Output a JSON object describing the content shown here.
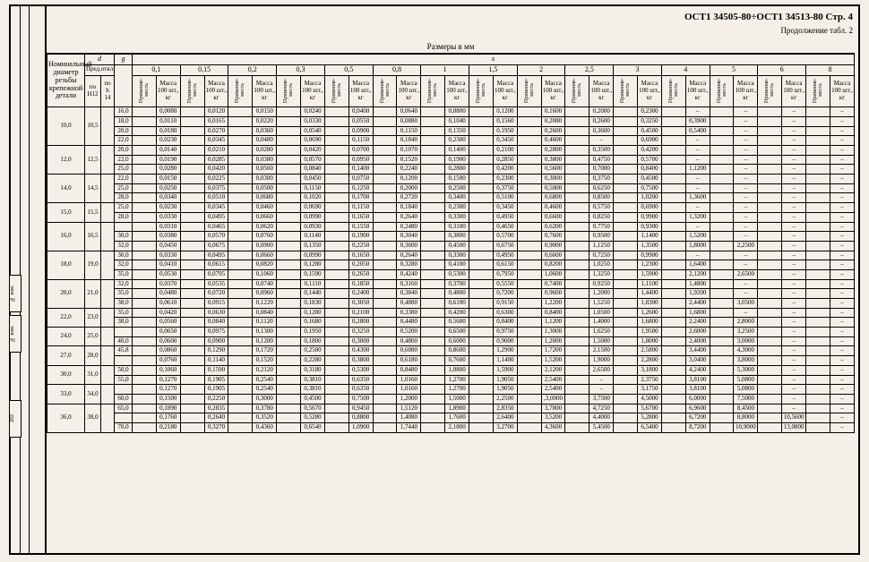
{
  "header": {
    "page_mark": "- 5 -",
    "doc_code": "ОСТ1 34505-80÷ОСТ1 34513-80 Стр. 4",
    "continuation": "Продолжение табл. 2",
    "caption": "Размеры в мм"
  },
  "corner": {
    "nom": "Номинальный диаметр резьбы крепежной детали",
    "d_sym": "d",
    "g_sym": "g",
    "pred": "Пред.откл.",
    "h12": "по Н12",
    "h14": "по h 14",
    "s_label": "s"
  },
  "s_cols": [
    "0,1",
    "0,15",
    "0,2",
    "0,3",
    "0,5",
    "0,8",
    "1",
    "1,5",
    "2",
    "2,5",
    "3",
    "4",
    "5",
    "6",
    "8"
  ],
  "sub": {
    "prim": "Применяе-мость",
    "mass": "Масса 100 шт., кг"
  },
  "rows": [
    {
      "d": "10,0",
      "h": "10,5",
      "g": "16,0",
      "m": [
        "0,0080",
        "0,0120",
        "0,0150",
        "0,0240",
        "0,0400",
        "0,0640",
        "0,0800",
        "0,1200",
        "0,1600",
        "0,2000",
        "0,2300",
        "",
        "",
        "",
        ""
      ]
    },
    {
      "d": "",
      "h": "",
      "g": "18,0",
      "m": [
        "0,0110",
        "0,0165",
        "0,0220",
        "0,0330",
        "0,0550",
        "0,0880",
        "0,1040",
        "0,1560",
        "0,2080",
        "0,2600",
        "0,3250",
        "0,3900",
        "",
        "",
        ""
      ]
    },
    {
      "d": "",
      "h": "",
      "g": "20,0",
      "m": [
        "0,0180",
        "0,0270",
        "0,0360",
        "0,0540",
        "0,0900",
        "0,1150",
        "0,1350",
        "0,1950",
        "0,2600",
        "0,3600",
        "0,4500",
        "0,5400",
        "",
        "",
        ""
      ]
    },
    {
      "d": "",
      "h": "",
      "g": "22,0",
      "m": [
        "0,0230",
        "0,0345",
        "0,0480",
        "0,0690",
        "0,1150",
        "0,1840",
        "0,2300",
        "0,3450",
        "0,4600",
        "",
        "0,6900",
        "",
        "",
        "",
        ""
      ]
    },
    {
      "d": "12,0",
      "h": "12,5",
      "g": "20,0",
      "m": [
        "0,0140",
        "0,0210",
        "0,0280",
        "0,0420",
        "0,0700",
        "0,1070",
        "0,1400",
        "0,2100",
        "0,2800",
        "0,3500",
        "0,4200",
        "",
        "",
        "",
        ""
      ]
    },
    {
      "d": "",
      "h": "",
      "g": "22,0",
      "m": [
        "0,0190",
        "0,0285",
        "0,0380",
        "0,0570",
        "0,0950",
        "0,1520",
        "0,1900",
        "0,2850",
        "0,3800",
        "0,4750",
        "0,5700",
        "",
        "",
        "",
        ""
      ]
    },
    {
      "d": "",
      "h": "",
      "g": "25,0",
      "m": [
        "0,0280",
        "0,0420",
        "0,0560",
        "0,0840",
        "0,1400",
        "0,2240",
        "0,2800",
        "0,4200",
        "0,5600",
        "0,7000",
        "0,8400",
        "1,1200",
        "",
        "",
        ""
      ]
    },
    {
      "d": "14,0",
      "h": "14,5",
      "g": "22,0",
      "m": [
        "0,0150",
        "0,0225",
        "0,0300",
        "0,0450",
        "0,0750",
        "0,1200",
        "0,1500",
        "0,2300",
        "0,3000",
        "0,3750",
        "0,4500",
        "",
        "",
        "",
        ""
      ]
    },
    {
      "d": "",
      "h": "",
      "g": "25,0",
      "m": [
        "0,0250",
        "0,0375",
        "0,0500",
        "0,1150",
        "0,1250",
        "0,2000",
        "0,2500",
        "0,3750",
        "0,5000",
        "0,6250",
        "0,7500",
        "",
        "",
        "",
        ""
      ]
    },
    {
      "d": "",
      "h": "",
      "g": "28,0",
      "m": [
        "0,0340",
        "0,0510",
        "0,0680",
        "0,1020",
        "0,1700",
        "0,2720",
        "0,3400",
        "0,5100",
        "0,6800",
        "0,8500",
        "1,0200",
        "1,3600",
        "",
        "",
        ""
      ]
    },
    {
      "d": "15,0",
      "h": "15,5",
      "g": "25,0",
      "m": [
        "0,0230",
        "0,0345",
        "0,0460",
        "0,0690",
        "0,1150",
        "0,1840",
        "0,2300",
        "0,3450",
        "0,4600",
        "0,5750",
        "0,6900",
        "",
        "",
        "",
        ""
      ]
    },
    {
      "d": "",
      "h": "",
      "g": "28,0",
      "m": [
        "0,0330",
        "0,0495",
        "0,0660",
        "0,0990",
        "0,1650",
        "0,2640",
        "0,3300",
        "0,4950",
        "0,6600",
        "0,8250",
        "0,9900",
        "1,3200",
        "",
        "",
        ""
      ]
    },
    {
      "d": "16,0",
      "h": "16,5",
      "g": "",
      "m": [
        "0,0310",
        "0,0465",
        "0,0620",
        "0,0930",
        "0,1550",
        "0,2480",
        "0,3100",
        "0,4650",
        "0,6200",
        "0,7750",
        "0,9300",
        "",
        "",
        "",
        ""
      ]
    },
    {
      "d": "",
      "h": "",
      "g": "30,0",
      "m": [
        "0,0380",
        "0,0570",
        "0,0760",
        "0,1140",
        "0,1900",
        "0,3040",
        "0,3800",
        "0,5700",
        "0,7600",
        "0,9500",
        "1,1400",
        "1,5200",
        "",
        "",
        ""
      ]
    },
    {
      "d": "",
      "h": "",
      "g": "32,0",
      "m": [
        "0,0450",
        "0,0675",
        "0,0900",
        "0,1350",
        "0,2250",
        "0,3600",
        "0,4500",
        "0,6750",
        "0,9000",
        "1,1250",
        "1,3500",
        "1,8000",
        "2,2500",
        "",
        ""
      ]
    },
    {
      "d": "18,0",
      "h": "19,0",
      "g": "30,0",
      "m": [
        "0,0330",
        "0,0495",
        "0,0660",
        "0,0990",
        "0,1650",
        "0,2640",
        "0,3300",
        "0,4950",
        "0,6600",
        "0,7250",
        "0,9900",
        "",
        "",
        "",
        ""
      ]
    },
    {
      "d": "",
      "h": "",
      "g": "32,0",
      "m": [
        "0,0410",
        "0,0615",
        "0,0820",
        "0,1280",
        "0,2050",
        "0,3280",
        "0,4100",
        "0,6150",
        "0,8200",
        "1,0250",
        "1,2300",
        "1,6400",
        "",
        "",
        ""
      ]
    },
    {
      "d": "",
      "h": "",
      "g": "35,0",
      "m": [
        "0,0530",
        "0,0795",
        "0,1060",
        "0,1590",
        "0,2650",
        "0,4240",
        "0,5300",
        "0,7950",
        "1,0600",
        "1,3250",
        "1,5900",
        "2,1200",
        "2,6500",
        "",
        ""
      ]
    },
    {
      "d": "20,0",
      "h": "21,0",
      "g": "32,0",
      "m": [
        "0,0370",
        "0,0535",
        "0,0740",
        "0,1110",
        "0,1850",
        "0,3160",
        "0,3700",
        "0,5550",
        "0,7400",
        "0,9250",
        "1,1100",
        "1,4800",
        "",
        "",
        ""
      ]
    },
    {
      "d": "",
      "h": "",
      "g": "35,0",
      "m": [
        "0,0480",
        "0,0720",
        "0,0960",
        "0,1440",
        "0,2400",
        "0,3840",
        "0,4800",
        "0,7200",
        "0,9600",
        "1,2000",
        "1,4400",
        "1,9200",
        "",
        "",
        ""
      ]
    },
    {
      "d": "",
      "h": "",
      "g": "38,0",
      "m": [
        "0,0610",
        "0,0915",
        "0,1220",
        "0,1830",
        "0,3050",
        "0,4880",
        "0,6100",
        "0,9150",
        "1,2200",
        "1,5250",
        "1,8300",
        "2,4400",
        "3,0500",
        "",
        ""
      ]
    },
    {
      "d": "22,0",
      "h": "23,0",
      "g": "35,0",
      "m": [
        "0,0420",
        "0,0630",
        "0,0840",
        "0,1280",
        "0,2100",
        "0,3380",
        "0,4200",
        "0,6300",
        "0,8400",
        "1,0500",
        "1,2600",
        "1,6800",
        "",
        "",
        ""
      ]
    },
    {
      "d": "",
      "h": "",
      "g": "38,0",
      "m": [
        "0,0560",
        "0,0840",
        "0,1120",
        "0,1680",
        "0,2800",
        "0,4480",
        "0,5600",
        "0,8400",
        "1,1200",
        "1,4000",
        "1,6800",
        "2,2400",
        "2,8000",
        "",
        ""
      ]
    },
    {
      "d": "24,0",
      "h": "25,0",
      "g": "",
      "m": [
        "0,0650",
        "0,0975",
        "0,1300",
        "0,1950",
        "0,3250",
        "0,5200",
        "0,6500",
        "0,9750",
        "1,3000",
        "1,6250",
        "1,9500",
        "2,6000",
        "3,2500",
        "",
        ""
      ]
    },
    {
      "d": "",
      "h": "",
      "g": "40,0",
      "m": [
        "0,0600",
        "0,0900",
        "0,1200",
        "0,1800",
        "0,3000",
        "0,4800",
        "0,6000",
        "0,9000",
        "1,2000",
        "1,5000",
        "1,8000",
        "2,4000",
        "3,0000",
        "",
        ""
      ]
    },
    {
      "d": "27,0",
      "h": "28,0",
      "g": "45,8",
      "m": [
        "0,0860",
        "0,1290",
        "0,1720",
        "0,2580",
        "0,4300",
        "0,6080",
        "0,8600",
        "1,2900",
        "1,7200",
        "2,1500",
        "2,5800",
        "3,4400",
        "4,3000",
        "",
        ""
      ]
    },
    {
      "d": "",
      "h": "",
      "g": "",
      "m": [
        "0,0760",
        "0,1140",
        "0,1520",
        "0,2280",
        "0,3800",
        "0,6180",
        "0,7600",
        "1,1400",
        "1,5200",
        "1,9000",
        "2,2800",
        "3,0400",
        "3,8000",
        "",
        ""
      ]
    },
    {
      "d": "30,0",
      "h": "31,0",
      "g": "50,0",
      "m": [
        "0,1060",
        "0,1590",
        "0,2120",
        "0,3180",
        "0,5300",
        "0,8480",
        "1,0800",
        "1,5900",
        "2,1200",
        "2,6500",
        "3,1800",
        "4,2400",
        "5,3000",
        "",
        ""
      ]
    },
    {
      "d": "",
      "h": "",
      "g": "55,0",
      "m": [
        "0,1270",
        "0,1905",
        "0,2540",
        "0,3810",
        "0,6350",
        "1,0160",
        "1,2700",
        "1,9050",
        "2,5400",
        "",
        "2,3750",
        "3,8100",
        "5,0800",
        "",
        ""
      ]
    },
    {
      "d": "33,0",
      "h": "34,0",
      "g": "",
      "m": [
        "0,1270",
        "0,1905",
        "0,2540",
        "0,3810",
        "0,6350",
        "1,0160",
        "1,2700",
        "1,9050",
        "2,5400",
        "",
        "3,1750",
        "3,8100",
        "5,0800",
        "",
        ""
      ]
    },
    {
      "d": "",
      "h": "",
      "g": "60,0",
      "m": [
        "0,1500",
        "0,2250",
        "0,3000",
        "0,4500",
        "0,7500",
        "1,2000",
        "1,5000",
        "2,2500",
        ",3,0000",
        "3,7500",
        "4,5000",
        "6,0000",
        "7,5000",
        "",
        ""
      ]
    },
    {
      "d": "36,0",
      "h": "38,0",
      "g": "65,0",
      "m": [
        "0,1890",
        "0,2835",
        "0,3780",
        "0,5670",
        "0,9450",
        "1,5120",
        "1,8900",
        "2,8350",
        "3,7800",
        "4,7250",
        "5,6700",
        "6,9600",
        "8,4500",
        "",
        ""
      ]
    },
    {
      "d": "",
      "h": "",
      "g": "",
      "m": [
        "0,1760",
        "0,2640",
        "0,3520",
        "0,5280",
        "0,8800",
        "1,4080",
        "1,7600",
        "2,6400",
        "3,5200",
        "4,4000",
        "5,2800",
        "6,7200",
        "8,8000",
        "10,5600",
        ""
      ]
    },
    {
      "d": "",
      "h": "",
      "g": "70,0",
      "m": [
        "0,2180",
        "0,3270",
        "0,4360",
        "0,6540",
        "1,0900",
        "1,7440",
        "2,1800",
        "3,2700",
        "4,3600",
        "5,4500",
        "6,5400",
        "8,7200",
        "10,9000",
        "13,0800",
        ""
      ]
    }
  ]
}
